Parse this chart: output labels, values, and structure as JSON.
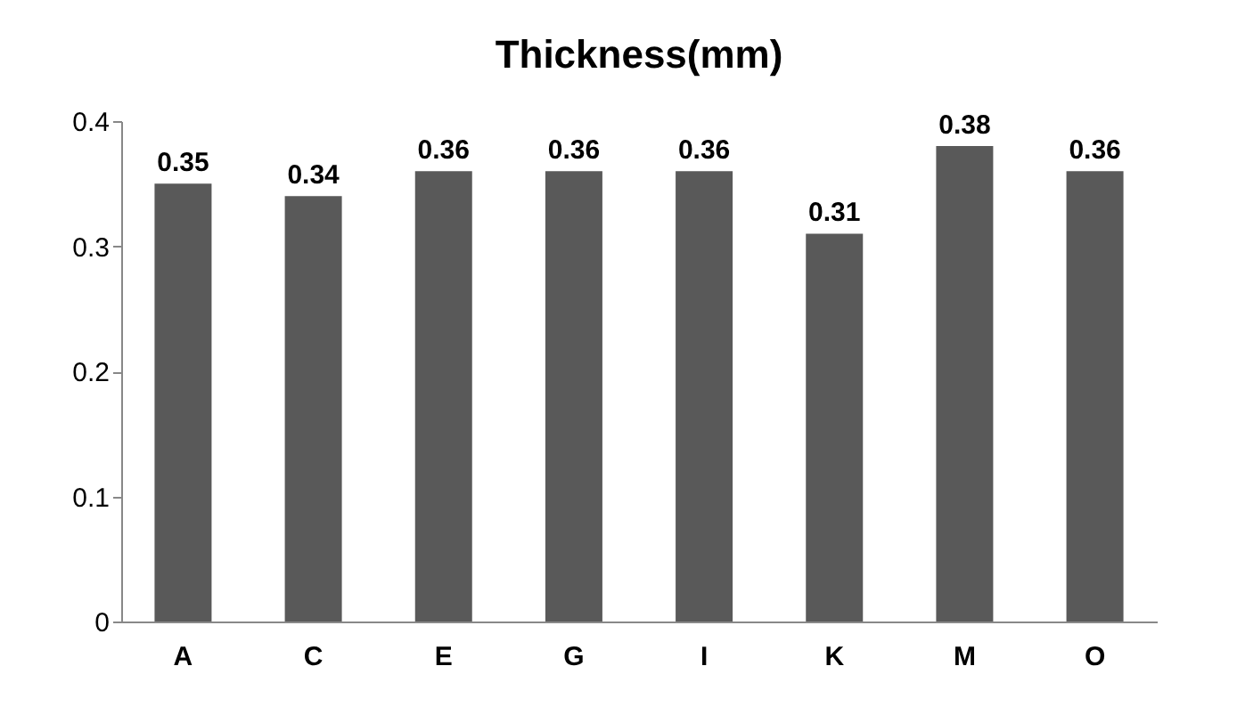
{
  "chart_data": {
    "type": "bar",
    "title": "Thickness(mm)",
    "categories": [
      "A",
      "C",
      "E",
      "G",
      "I",
      "K",
      "M",
      "O"
    ],
    "values": [
      0.35,
      0.34,
      0.36,
      0.36,
      0.36,
      0.31,
      0.38,
      0.36
    ],
    "color": "#595959",
    "ylim": [
      0,
      0.4
    ],
    "yticks": [
      0,
      0.1,
      0.2,
      0.3,
      0.4
    ],
    "data_labels": true,
    "grid": false
  }
}
